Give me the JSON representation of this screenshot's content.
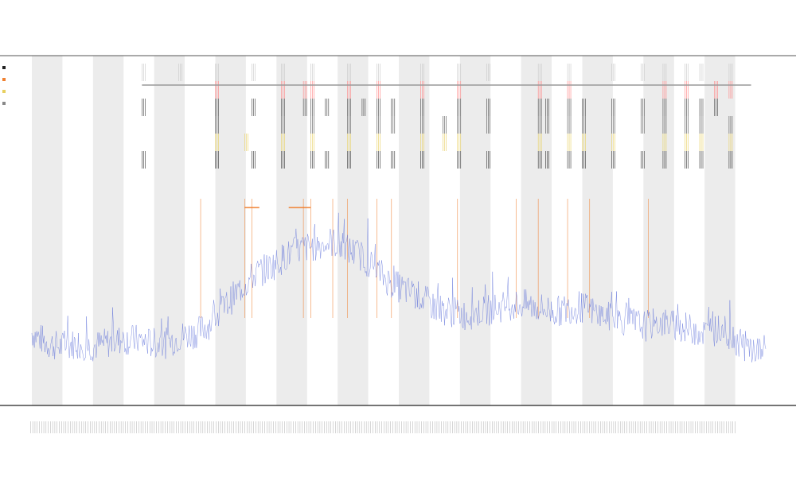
{
  "chart_data": {
    "type": "line",
    "title": "",
    "subtitle_lines": [
      "",
      ""
    ],
    "xlabel": "",
    "ylabel": "",
    "grid": false,
    "legend_position": "top-left",
    "legend": [
      {
        "name": "",
        "color": "#222222"
      },
      {
        "name": "",
        "color": "#f08030"
      },
      {
        "name": "",
        "color": "#e8d060"
      },
      {
        "name": "",
        "color": "#888888"
      }
    ],
    "x_range": [
      0,
      1
    ],
    "y_range": [
      0,
      1
    ],
    "band_count": 24,
    "band_color": "#ececec",
    "series": [
      {
        "color": "#5a6cd8",
        "style": "trace",
        "values": [
          0.19,
          0.16,
          0.15,
          0.16,
          0.15,
          0.16,
          0.17,
          0.17,
          0.16,
          0.16,
          0.18,
          0.19,
          0.22,
          0.27,
          0.32,
          0.36,
          0.38,
          0.41,
          0.43,
          0.44,
          0.45,
          0.43,
          0.41,
          0.37,
          0.33,
          0.31,
          0.29,
          0.26,
          0.25,
          0.24,
          0.25,
          0.26,
          0.27,
          0.27,
          0.26,
          0.25,
          0.26,
          0.26,
          0.24,
          0.23,
          0.22,
          0.21,
          0.22,
          0.21,
          0.2,
          0.19,
          0.2,
          0.17,
          0.14,
          0.14
        ]
      }
    ],
    "orange_spikes": [
      0.23,
      0.29,
      0.3,
      0.37,
      0.38,
      0.41,
      0.43,
      0.47,
      0.49,
      0.58,
      0.66,
      0.69,
      0.73,
      0.76,
      0.84
    ],
    "event_rows": [
      {
        "color": "#c8c8c8",
        "positions": [
          0.15,
          0.2,
          0.25,
          0.3,
          0.34,
          0.38,
          0.43,
          0.47,
          0.53,
          0.58,
          0.62,
          0.69,
          0.73,
          0.79,
          0.83,
          0.86,
          0.89,
          0.91,
          0.95
        ]
      },
      {
        "color": "#ff8080",
        "positions": [
          0.25,
          0.34,
          0.37,
          0.38,
          0.43,
          0.47,
          0.53,
          0.58,
          0.69,
          0.73,
          0.86,
          0.89,
          0.93,
          0.95
        ]
      },
      {
        "color": "#444444",
        "positions": [
          0.15,
          0.25,
          0.3,
          0.34,
          0.37,
          0.38,
          0.4,
          0.43,
          0.45,
          0.47,
          0.49,
          0.53,
          0.58,
          0.62,
          0.69,
          0.7,
          0.73,
          0.75,
          0.79,
          0.83,
          0.86,
          0.89,
          0.91,
          0.93
        ]
      },
      {
        "color": "#555555",
        "positions": [
          0.25,
          0.34,
          0.38,
          0.43,
          0.47,
          0.49,
          0.53,
          0.56,
          0.58,
          0.62,
          0.69,
          0.7,
          0.73,
          0.75,
          0.79,
          0.83,
          0.86,
          0.89,
          0.91,
          0.95
        ]
      },
      {
        "color": "#e8d060",
        "positions": [
          0.25,
          0.29,
          0.34,
          0.38,
          0.43,
          0.47,
          0.53,
          0.56,
          0.58,
          0.69,
          0.73,
          0.75,
          0.79,
          0.86,
          0.89,
          0.91,
          0.95
        ]
      },
      {
        "color": "#333333",
        "positions": [
          0.15,
          0.25,
          0.3,
          0.34,
          0.38,
          0.4,
          0.43,
          0.47,
          0.49,
          0.53,
          0.58,
          0.62,
          0.69,
          0.7,
          0.73,
          0.75,
          0.79,
          0.83,
          0.86,
          0.89,
          0.91,
          0.95
        ]
      }
    ],
    "horizontal_segments": [
      {
        "color": "#999999",
        "row": 0,
        "from": 0.15,
        "to": 0.98
      },
      {
        "color": "#f08030",
        "row": 5,
        "from": 0.29,
        "to": 0.31
      },
      {
        "color": "#f08030",
        "row": 5,
        "from": 0.35,
        "to": 0.38
      }
    ],
    "x_tick_count": 320
  }
}
